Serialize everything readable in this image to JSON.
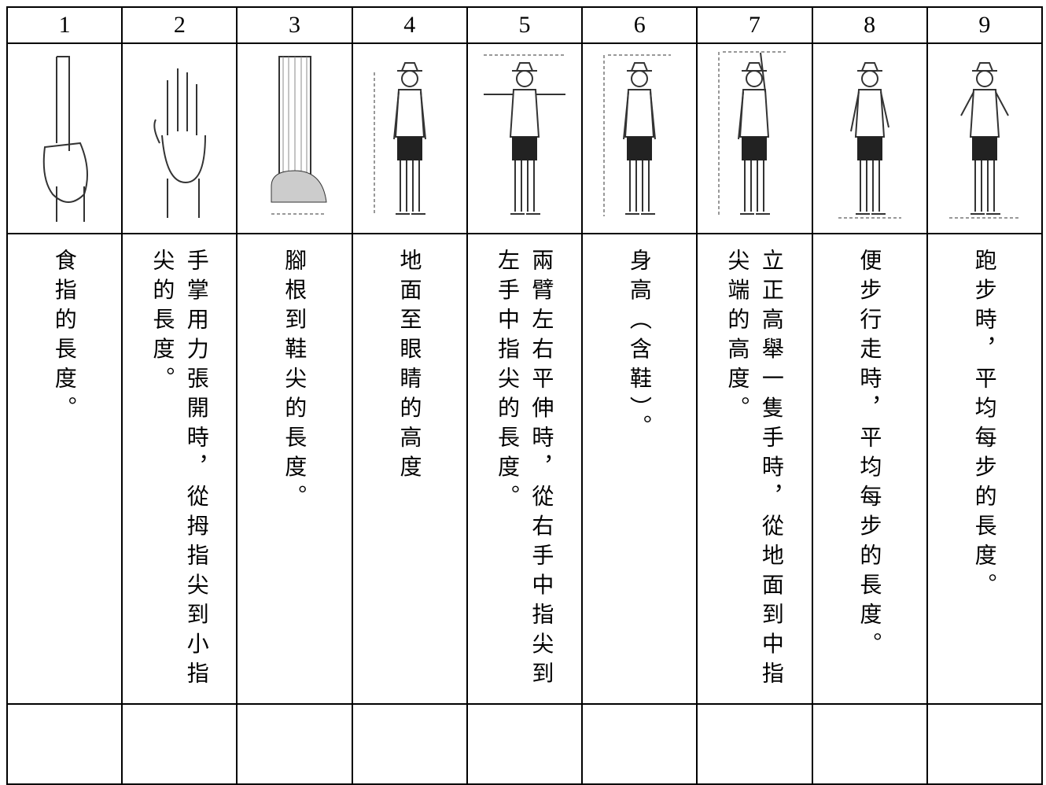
{
  "table": {
    "header": [
      "1",
      "2",
      "3",
      "4",
      "5",
      "6",
      "7",
      "8",
      "9"
    ],
    "descriptions": [
      "食指的長度。",
      "手掌用力張開時，從拇指尖到小指尖的長度。",
      "腳根到鞋尖的長度。",
      "地面至眼睛的高度",
      "兩臂左右平伸時，從右手中指尖到左手中指尖的長度。",
      "身高（含鞋）。",
      "立正高舉一隻手時，從地面到中指尖端的高度。",
      "便步行走時，平均每步的長度。",
      "跑步時，平均每步的長度。"
    ]
  }
}
